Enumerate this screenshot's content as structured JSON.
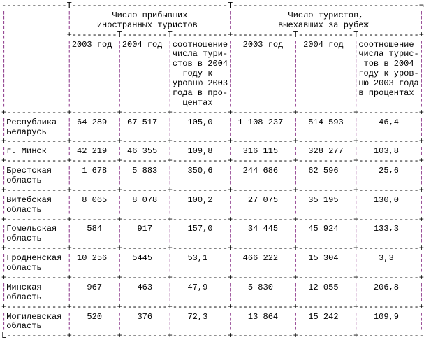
{
  "page": {
    "background": "#ffffff"
  },
  "colors": {
    "text": "#000000",
    "border": "#000000",
    "column_divider": "#8a3388"
  },
  "borders": {
    "horizontal": "-",
    "vertical": "¦",
    "cross": "+",
    "tee": "T",
    "top_right": "¬",
    "bottom_left": "L"
  },
  "table": {
    "group_headers": [
      {
        "title_lines": [
          "Число прибывших",
          "иностранных туристов"
        ]
      },
      {
        "title_lines": [
          "Число туристов,",
          "выехавших за рубеж"
        ]
      }
    ],
    "column_headers": {
      "group1_year1": "2003 год",
      "group1_year2": "2004 год",
      "group1_ratio_lines": [
        "соотношение",
        "числа тури-",
        "стов в 2004",
        "году к",
        "уровню 2003",
        "года в про-",
        "центах"
      ],
      "group2_year1": "2003 год",
      "group2_year2": "2004 год",
      "group2_ratio_lines": [
        "соотношение",
        "числа турис-",
        "тов в 2004",
        "году к уров-",
        "ню 2003 года",
        "в процентах"
      ]
    },
    "rows": [
      {
        "region_lines": [
          "Республика",
          "Беларусь"
        ],
        "values": [
          "64 289",
          "67 517",
          "105,0",
          "1 108 237",
          "514 593",
          "46,4"
        ]
      },
      {
        "region_lines": [
          "г. Минск"
        ],
        "values": [
          "42 219",
          "46 355",
          "109,8",
          "316 115",
          "328 277",
          "103,8"
        ]
      },
      {
        "region_lines": [
          "Брестская",
          "область"
        ],
        "values": [
          "1 678",
          "5 883",
          "350,6",
          "244 686",
          "62 596",
          "25,6"
        ]
      },
      {
        "region_lines": [
          "Витебская",
          "область"
        ],
        "values": [
          "8 065",
          "8 078",
          "100,2",
          "27 075",
          "35 195",
          "130,0"
        ]
      },
      {
        "region_lines": [
          "Гомельская",
          "область"
        ],
        "values": [
          "584",
          "917",
          "157,0",
          "34 445",
          "45 924",
          "133,3"
        ]
      },
      {
        "region_lines": [
          "Гродненская",
          "область"
        ],
        "values": [
          "10 256",
          "5445",
          "53,1",
          "466 222",
          "15 304",
          "3,3"
        ]
      },
      {
        "region_lines": [
          "Минская",
          "область"
        ],
        "values": [
          "967",
          "463",
          "47,9",
          "5 830",
          "12 055",
          "206,8"
        ]
      },
      {
        "region_lines": [
          "Могилевская",
          "область"
        ],
        "values": [
          "520",
          "376",
          "72,3",
          "13 864",
          "15 242",
          "109,9"
        ]
      }
    ]
  }
}
